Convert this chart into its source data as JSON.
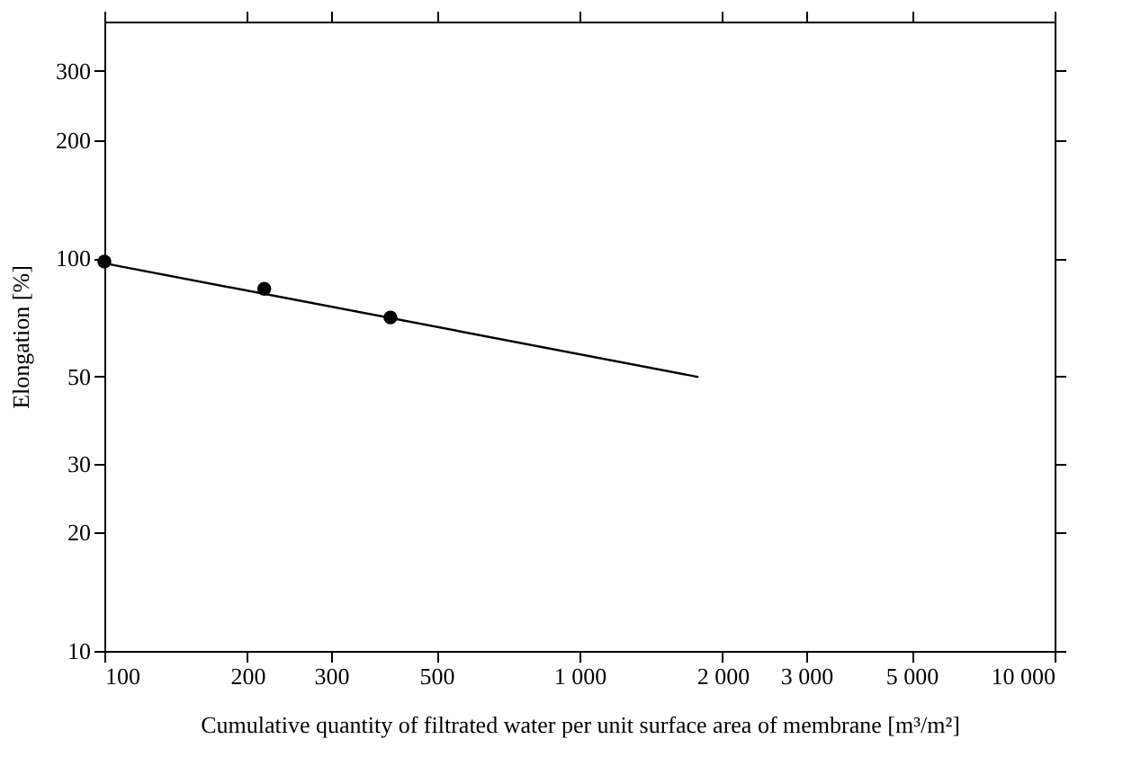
{
  "chart_data": {
    "type": "scatter",
    "xlabel": "Cumulative quantity of filtrated water per unit surface area of membrane  [m³/m²]",
    "ylabel": "Elongation  [%]",
    "log": "xy",
    "grid": false,
    "xlim": [
      100,
      10000
    ],
    "ylim": [
      10,
      400
    ],
    "xticks": [
      100,
      200,
      300,
      500,
      {
        "value": 1000,
        "label": "1 000"
      },
      {
        "value": 2000,
        "label": "2 000"
      },
      {
        "value": 3000,
        "label": "3 000"
      },
      {
        "value": 5000,
        "label": "5 000"
      },
      {
        "value": 10000,
        "label": "10 000"
      }
    ],
    "yticks": [
      10,
      20,
      30,
      50,
      100,
      200,
      300
    ],
    "series": [
      {
        "type": "scatter",
        "color": "#000000",
        "marker": "circle",
        "x": [
          100,
          217,
          400
        ],
        "values": [
          98,
          83.5,
          70.6
        ]
      },
      {
        "type": "line",
        "color": "#000000",
        "marker": "none",
        "line_style": "solid",
        "x": [
          100,
          1780
        ],
        "values": [
          97,
          49.8
        ]
      }
    ]
  }
}
